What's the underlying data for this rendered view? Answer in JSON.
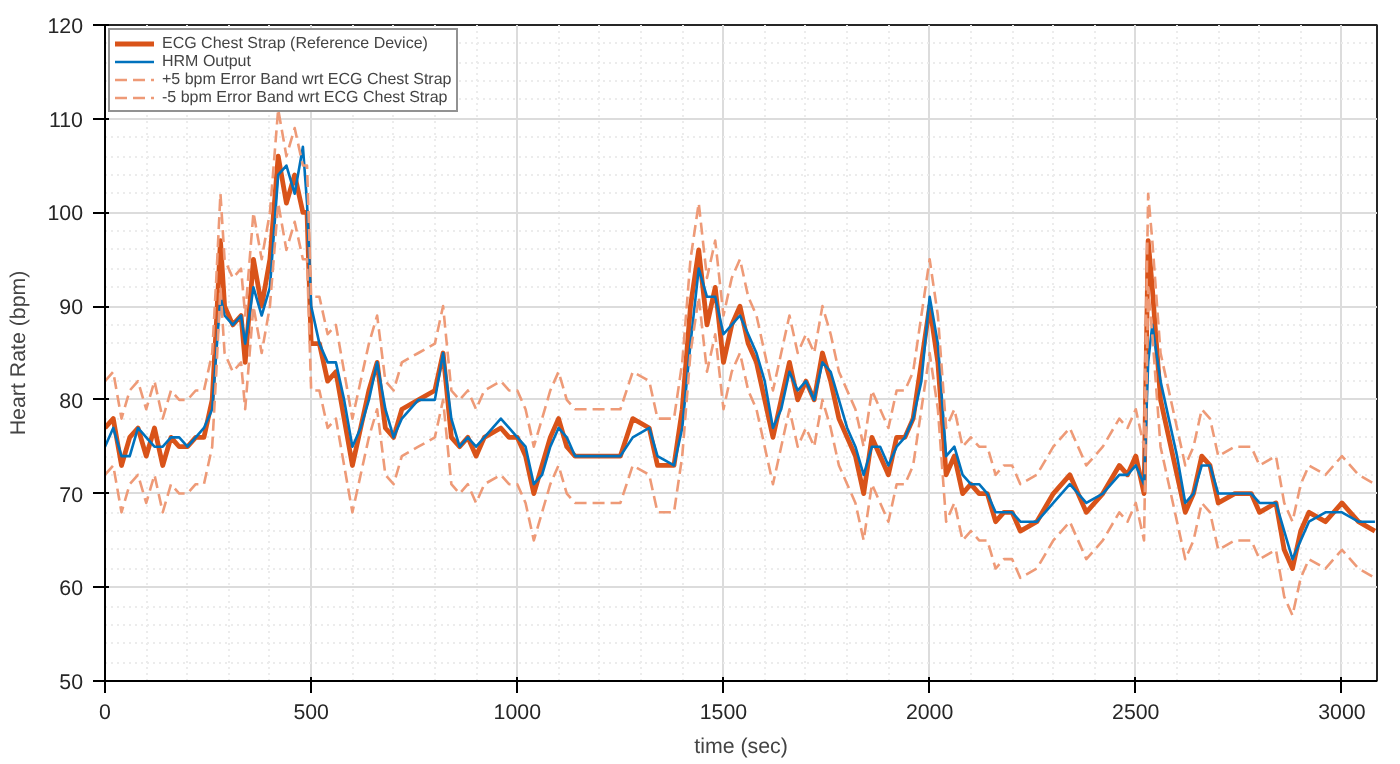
{
  "chart_data": {
    "type": "line",
    "xlabel": "time (sec)",
    "ylabel": "Heart Rate (bpm)",
    "xlim": [
      0,
      3085
    ],
    "ylim": [
      50,
      120
    ],
    "xticks": [
      0,
      500,
      1000,
      1500,
      2000,
      2500,
      3000
    ],
    "yticks": [
      50,
      60,
      70,
      80,
      90,
      100,
      110,
      120
    ],
    "grid": true,
    "legend": "top left",
    "marker": "none",
    "x": [
      0,
      20,
      40,
      60,
      80,
      100,
      120,
      140,
      160,
      180,
      200,
      220,
      240,
      260,
      270,
      280,
      290,
      310,
      330,
      340,
      360,
      380,
      400,
      420,
      440,
      460,
      480,
      490,
      500,
      520,
      540,
      560,
      580,
      600,
      620,
      640,
      660,
      680,
      700,
      720,
      760,
      800,
      820,
      840,
      860,
      880,
      900,
      920,
      960,
      980,
      1000,
      1020,
      1040,
      1060,
      1080,
      1100,
      1120,
      1140,
      1200,
      1250,
      1280,
      1320,
      1340,
      1380,
      1400,
      1420,
      1440,
      1460,
      1480,
      1500,
      1520,
      1540,
      1560,
      1580,
      1600,
      1620,
      1640,
      1660,
      1680,
      1700,
      1720,
      1740,
      1760,
      1780,
      1800,
      1820,
      1840,
      1860,
      1880,
      1900,
      1920,
      1940,
      1960,
      1980,
      2000,
      2020,
      2040,
      2060,
      2080,
      2100,
      2120,
      2140,
      2160,
      2180,
      2200,
      2220,
      2260,
      2300,
      2340,
      2380,
      2420,
      2460,
      2480,
      2500,
      2520,
      2530,
      2540,
      2560,
      2580,
      2600,
      2620,
      2640,
      2660,
      2680,
      2700,
      2740,
      2780,
      2800,
      2840,
      2860,
      2880,
      2900,
      2920,
      2960,
      3000,
      3040,
      3080
    ],
    "series": [
      {
        "name": "ECG Chest Strap (Reference Device)",
        "color": "#d95319",
        "line_style": "solid",
        "values": [
          77,
          78,
          73,
          76,
          77,
          74,
          77,
          73,
          76,
          75,
          75,
          76,
          76,
          80,
          88,
          97,
          90,
          88,
          89,
          84,
          95,
          90,
          95,
          106,
          101,
          104,
          100,
          100,
          86,
          86,
          82,
          83,
          78,
          73,
          77,
          81,
          84,
          77,
          76,
          79,
          80,
          81,
          85,
          76,
          75,
          76,
          74,
          76,
          77,
          76,
          76,
          74,
          70,
          73,
          76,
          78,
          75,
          74,
          74,
          74,
          78,
          77,
          73,
          73,
          79,
          90,
          96,
          88,
          92,
          84,
          88,
          90,
          86,
          84,
          80,
          76,
          80,
          84,
          80,
          82,
          80,
          85,
          82,
          78,
          76,
          74,
          70,
          76,
          74,
          72,
          76,
          76,
          78,
          84,
          90,
          84,
          72,
          74,
          70,
          71,
          70,
          70,
          67,
          68,
          68,
          66,
          67,
          70,
          72,
          68,
          70,
          73,
          72,
          74,
          70,
          97,
          92,
          80,
          76,
          72,
          68,
          70,
          74,
          73,
          69,
          70,
          70,
          68,
          69,
          64,
          62,
          66,
          68,
          67,
          69,
          67,
          66
        ]
      },
      {
        "name": "HRM Output",
        "color": "#0072bd",
        "line_style": "solid",
        "values": [
          75,
          77,
          74,
          74,
          77,
          76,
          75,
          75,
          76,
          76,
          75,
          76,
          77,
          79,
          85,
          91,
          89,
          88,
          89,
          86,
          92,
          89,
          92,
          104,
          105,
          102,
          107,
          101,
          90,
          86,
          84,
          84,
          80,
          75,
          77,
          80,
          84,
          79,
          76,
          78,
          80,
          80,
          85,
          78,
          75,
          76,
          75,
          76,
          78,
          77,
          76,
          75,
          71,
          72,
          75,
          77,
          76,
          74,
          74,
          74,
          76,
          77,
          74,
          73,
          77,
          86,
          94,
          91,
          91,
          87,
          88,
          89,
          87,
          85,
          82,
          77,
          79,
          83,
          81,
          82,
          80,
          84,
          83,
          80,
          77,
          75,
          72,
          75,
          75,
          73,
          75,
          76,
          78,
          82,
          91,
          86,
          74,
          75,
          72,
          71,
          71,
          70,
          68,
          68,
          68,
          67,
          67,
          69,
          71,
          69,
          70,
          72,
          72,
          73,
          71,
          84,
          88,
          82,
          78,
          74,
          69,
          70,
          73,
          73,
          70,
          70,
          70,
          69,
          69,
          66,
          63,
          65,
          67,
          68,
          68,
          67,
          67
        ]
      },
      {
        "name": "+5 bpm Error Band wrt ECG Chest Strap",
        "color": "#ee9a77",
        "line_style": "dashed",
        "values": [
          82,
          83,
          78,
          81,
          82,
          79,
          82,
          78,
          81,
          80,
          80,
          81,
          81,
          85,
          93,
          102,
          95,
          93,
          94,
          89,
          100,
          95,
          100,
          111,
          106,
          109,
          105,
          105,
          91,
          91,
          87,
          88,
          83,
          78,
          82,
          86,
          89,
          82,
          81,
          84,
          85,
          86,
          90,
          81,
          80,
          81,
          79,
          81,
          82,
          81,
          81,
          79,
          75,
          78,
          81,
          83,
          80,
          79,
          79,
          79,
          83,
          82,
          78,
          78,
          84,
          95,
          101,
          93,
          97,
          89,
          93,
          95,
          91,
          89,
          85,
          81,
          85,
          89,
          85,
          87,
          85,
          90,
          87,
          83,
          81,
          79,
          75,
          81,
          79,
          77,
          81,
          81,
          83,
          89,
          95,
          89,
          77,
          79,
          75,
          76,
          75,
          75,
          72,
          73,
          73,
          71,
          72,
          75,
          77,
          73,
          75,
          78,
          77,
          79,
          75,
          102,
          97,
          85,
          81,
          77,
          73,
          75,
          79,
          78,
          74,
          75,
          75,
          73,
          74,
          69,
          67,
          71,
          73,
          72,
          74,
          72,
          71
        ]
      },
      {
        "name": "-5 bpm Error Band wrt ECG Chest Strap",
        "color": "#ee9a77",
        "line_style": "dashed",
        "values": [
          72,
          73,
          68,
          71,
          72,
          69,
          72,
          68,
          71,
          70,
          70,
          71,
          71,
          75,
          83,
          92,
          85,
          83,
          84,
          79,
          90,
          85,
          90,
          101,
          96,
          99,
          95,
          95,
          81,
          81,
          77,
          78,
          73,
          68,
          72,
          76,
          79,
          72,
          71,
          74,
          75,
          76,
          80,
          71,
          70,
          71,
          69,
          71,
          72,
          71,
          71,
          69,
          65,
          68,
          71,
          73,
          70,
          69,
          69,
          69,
          73,
          72,
          68,
          68,
          74,
          85,
          91,
          83,
          87,
          79,
          83,
          85,
          81,
          79,
          75,
          71,
          75,
          79,
          75,
          77,
          75,
          80,
          77,
          73,
          71,
          69,
          65,
          71,
          69,
          67,
          71,
          71,
          73,
          79,
          85,
          79,
          67,
          69,
          65,
          66,
          65,
          65,
          62,
          63,
          63,
          61,
          62,
          65,
          67,
          63,
          65,
          68,
          67,
          69,
          65,
          92,
          87,
          75,
          71,
          67,
          63,
          65,
          69,
          68,
          64,
          65,
          65,
          63,
          64,
          59,
          57,
          61,
          63,
          62,
          64,
          62,
          61
        ]
      }
    ]
  }
}
